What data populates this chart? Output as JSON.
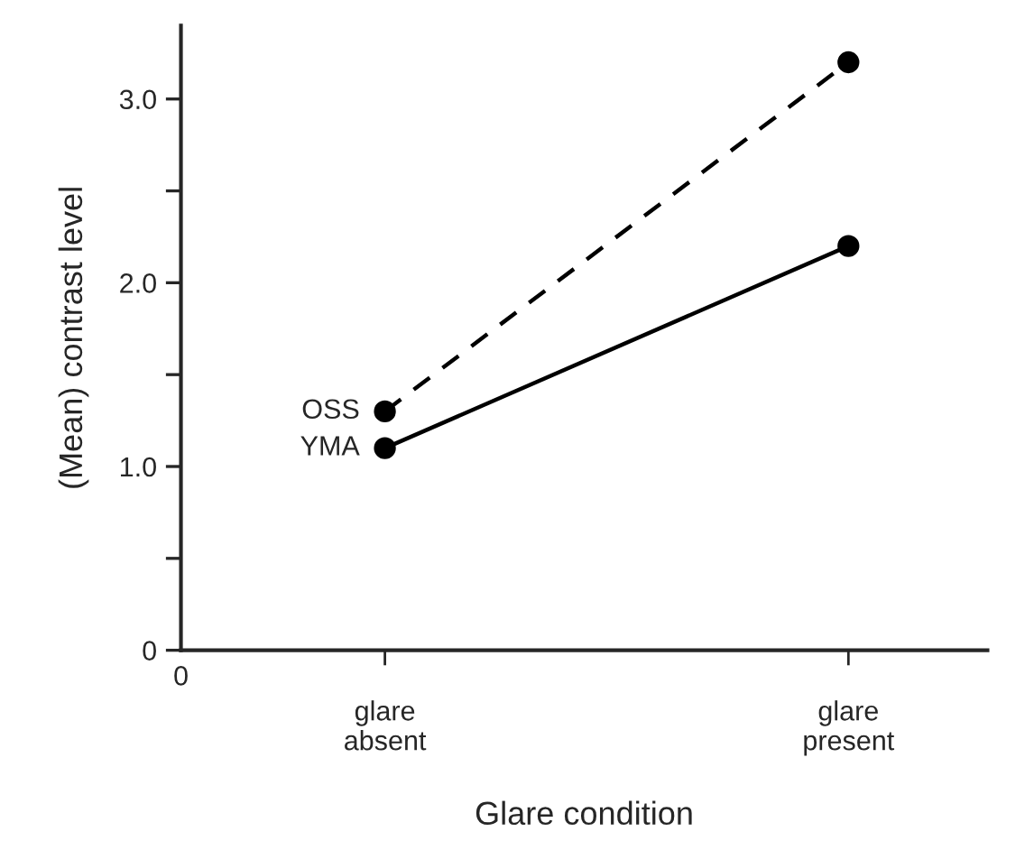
{
  "chart_data": {
    "type": "line",
    "xlabel": "Glare condition",
    "ylabel": "(Mean) contrast level",
    "categories": [
      "glare\nabsent",
      "glare\npresent"
    ],
    "series": [
      {
        "name": "OSS",
        "color": "#000000",
        "values": [
          1.3,
          3.2
        ],
        "line_style": "dashed"
      },
      {
        "name": "YMA",
        "color": "#000000",
        "values": [
          1.1,
          2.2
        ],
        "line_style": "solid"
      }
    ],
    "ylim": [
      0,
      3.4
    ],
    "yticks": [
      0,
      {
        "value": 0.5,
        "label": null
      },
      {
        "value": 1.0,
        "label": "1.0"
      },
      {
        "value": 1.5,
        "label": null
      },
      {
        "value": 2.0,
        "label": "2.0"
      },
      {
        "value": 2.5,
        "label": null
      },
      {
        "value": 3.0,
        "label": "3.0"
      }
    ],
    "marker": "circle",
    "grid": false,
    "legend": false,
    "annotations": [
      "0"
    ]
  }
}
